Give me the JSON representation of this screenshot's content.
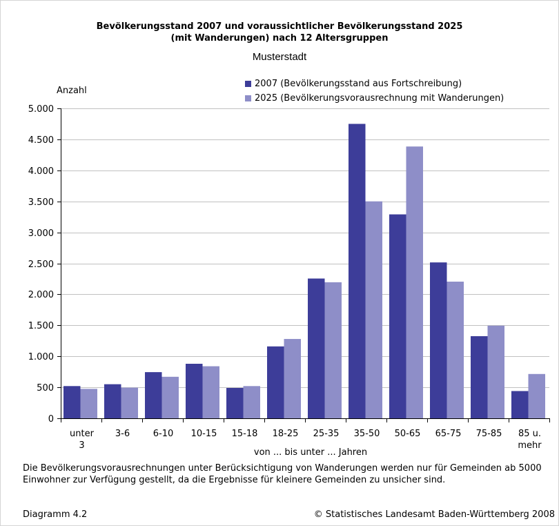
{
  "colors": {
    "series_2007": "#3d3d99",
    "series_2025": "#8e8ec8",
    "grid": "#c0c0c0",
    "axis": "#000000"
  },
  "chart_data": {
    "type": "bar",
    "title": "Bevölkerungsstand 2007 und voraussichtlicher Bevölkerungsstand 2025",
    "title_line2": "(mit Wanderungen) nach 12 Altersgruppen",
    "subtitle": "Musterstadt",
    "ylabel": "Anzahl",
    "xlabel": "von ... bis unter ... Jahren",
    "ylim": [
      0,
      5000
    ],
    "yticks": [
      0,
      500,
      1000,
      1500,
      2000,
      2500,
      3000,
      3500,
      4000,
      4500,
      5000
    ],
    "ytick_labels": [
      "0",
      "500",
      "1.000",
      "1.500",
      "2.000",
      "2.500",
      "3.000",
      "3.500",
      "4.000",
      "4.500",
      "5.000"
    ],
    "grid": true,
    "legend_position": "top-right",
    "categories": [
      "unter 3",
      "3-6",
      "6-10",
      "10-15",
      "15-18",
      "18-25",
      "25-35",
      "35-50",
      "50-65",
      "65-75",
      "75-85",
      "85 u. mehr"
    ],
    "category_labels": [
      [
        "unter",
        "3"
      ],
      [
        "3-6"
      ],
      [
        "6-10"
      ],
      [
        "10-15"
      ],
      [
        "15-18"
      ],
      [
        "18-25"
      ],
      [
        "25-35"
      ],
      [
        "35-50"
      ],
      [
        "50-65"
      ],
      [
        "65-75"
      ],
      [
        "75-85"
      ],
      [
        "85 u.",
        "mehr"
      ]
    ],
    "series": [
      {
        "name": "2007 (Bevölkerungsstand aus Fortschreibung)",
        "values": [
          520,
          550,
          745,
          880,
          490,
          1160,
          2255,
          4750,
          3290,
          2515,
          1325,
          440
        ]
      },
      {
        "name": "2025 (Bevölkerungsvorausrechnung mit Wanderungen)",
        "values": [
          475,
          495,
          670,
          840,
          520,
          1280,
          2195,
          3500,
          4385,
          2205,
          1495,
          715
        ]
      }
    ]
  },
  "footnote": "Die Bevölkerungsvorausrechnungen unter Berücksichtigung von Wanderungen werden nur für Gemeinden ab 5000 Einwohner zur Verfügung gestellt, da die Ergebnisse für kleinere Gemeinden zu unsicher sind.",
  "diagram_label": "Diagramm 4.2",
  "copyright": "© Statistisches Landesamt Baden-Württemberg 2008"
}
